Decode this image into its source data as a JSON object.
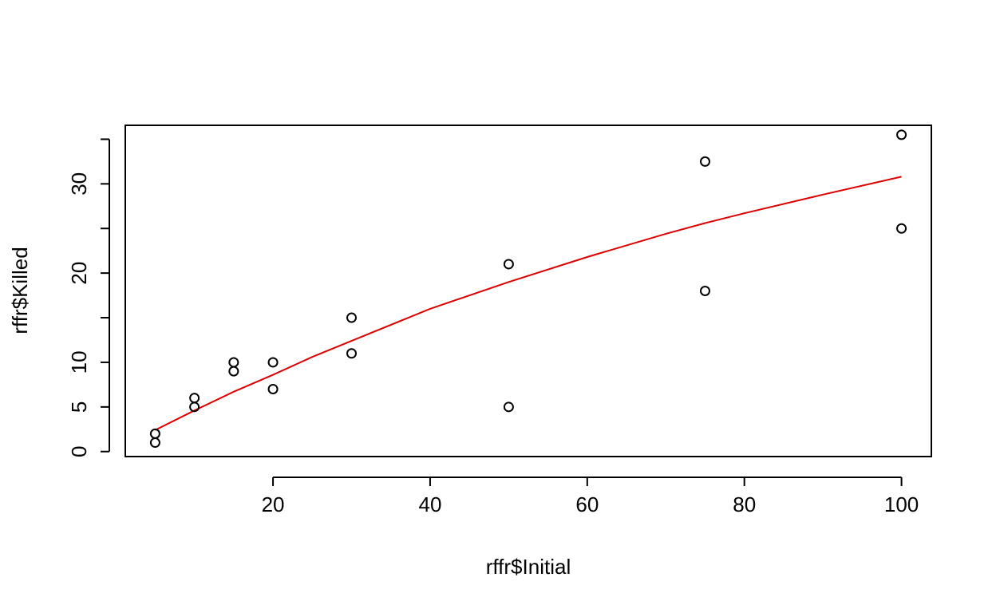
{
  "chart_data": {
    "type": "scatter",
    "title": "",
    "xlabel": "rffr$Initial",
    "ylabel": "rffr$Killed",
    "xlim": [
      1.2,
      103.8
    ],
    "ylim": [
      -0.56,
      36.56
    ],
    "x_ticks": [
      20,
      40,
      60,
      80,
      100
    ],
    "y_ticks": [
      0,
      5,
      10,
      20,
      30
    ],
    "y_tick_marks": [
      0,
      5,
      10,
      15,
      20,
      25,
      30,
      35
    ],
    "grid": false,
    "legend": "none",
    "points": [
      {
        "x": 5,
        "y": 1
      },
      {
        "x": 5,
        "y": 2
      },
      {
        "x": 10,
        "y": 5
      },
      {
        "x": 10,
        "y": 6
      },
      {
        "x": 15,
        "y": 9
      },
      {
        "x": 15,
        "y": 10
      },
      {
        "x": 20,
        "y": 7
      },
      {
        "x": 20,
        "y": 10
      },
      {
        "x": 30,
        "y": 11
      },
      {
        "x": 30,
        "y": 15
      },
      {
        "x": 50,
        "y": 5
      },
      {
        "x": 50,
        "y": 21
      },
      {
        "x": 75,
        "y": 18
      },
      {
        "x": 75,
        "y": 32.5
      },
      {
        "x": 100,
        "y": 25
      },
      {
        "x": 100,
        "y": 35.5
      }
    ],
    "fit_line": {
      "color": "#dd0000",
      "x": [
        5,
        10,
        15,
        20,
        25,
        30,
        40,
        50,
        60,
        70,
        75,
        80,
        90,
        100
      ],
      "y": [
        2.4,
        4.6,
        6.7,
        8.6,
        10.6,
        12.4,
        16.0,
        19.0,
        21.8,
        24.4,
        25.6,
        26.7,
        28.8,
        30.8
      ]
    },
    "colors": {
      "points": "#000000",
      "fit": "#dd0000",
      "axis": "#000000"
    }
  }
}
